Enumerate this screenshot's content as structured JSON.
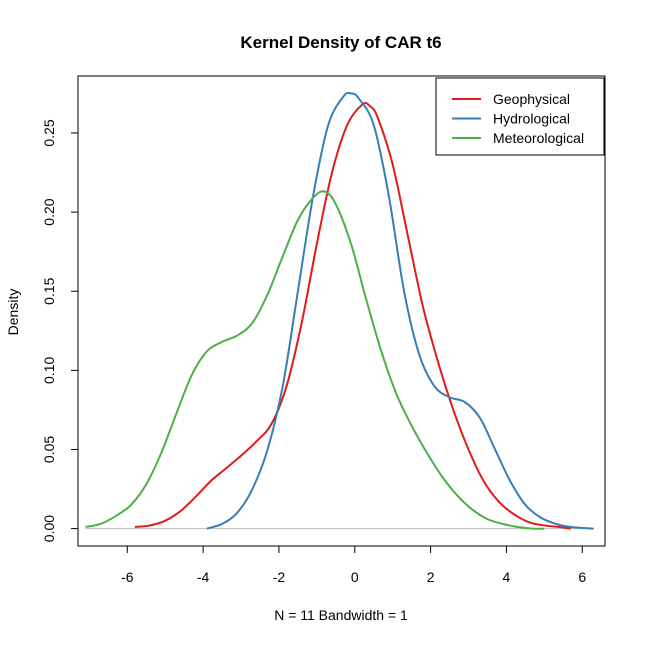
{
  "chart_data": {
    "type": "line",
    "title": "Kernel Density of CAR t6",
    "xlabel": "N = 11   Bandwidth = 1",
    "ylabel": "Density",
    "xlim": [
      -7.3,
      6.6
    ],
    "ylim": [
      -0.011,
      0.286
    ],
    "x_ticks": [
      -6,
      -4,
      -2,
      0,
      2,
      4,
      6
    ],
    "y_ticks": [
      0.0,
      0.05,
      0.1,
      0.15,
      0.2,
      0.25
    ],
    "x_tick_labels": [
      "-6",
      "-4",
      "-2",
      "0",
      "2",
      "4",
      "6"
    ],
    "y_tick_labels": [
      "0.00",
      "0.05",
      "0.10",
      "0.15",
      "0.20",
      "0.25"
    ],
    "baseline": 0,
    "legend_position": "top-right",
    "series": [
      {
        "name": "Geophysical",
        "color": "#e31a1c",
        "x": [
          -5.8,
          -5.4,
          -5.0,
          -4.6,
          -4.2,
          -3.8,
          -3.4,
          -3.0,
          -2.6,
          -2.2,
          -1.8,
          -1.4,
          -1.0,
          -0.6,
          -0.2,
          0.2,
          0.4,
          0.6,
          1.0,
          1.4,
          1.8,
          2.2,
          2.6,
          3.0,
          3.4,
          3.8,
          4.2,
          4.6,
          5.0,
          5.4,
          5.7
        ],
        "y": [
          0.001,
          0.002,
          0.005,
          0.011,
          0.02,
          0.03,
          0.038,
          0.046,
          0.055,
          0.066,
          0.09,
          0.13,
          0.18,
          0.225,
          0.255,
          0.268,
          0.267,
          0.26,
          0.23,
          0.185,
          0.14,
          0.105,
          0.075,
          0.05,
          0.03,
          0.017,
          0.009,
          0.004,
          0.002,
          0.001,
          0.0
        ]
      },
      {
        "name": "Hydrological",
        "color": "#377eb8",
        "x": [
          -3.9,
          -3.5,
          -3.1,
          -2.7,
          -2.3,
          -1.9,
          -1.5,
          -1.1,
          -0.7,
          -0.3,
          -0.1,
          0.1,
          0.5,
          0.9,
          1.3,
          1.7,
          2.1,
          2.5,
          2.9,
          3.3,
          3.7,
          4.1,
          4.5,
          4.9,
          5.3,
          5.7,
          6.3
        ],
        "y": [
          0.0,
          0.003,
          0.01,
          0.025,
          0.05,
          0.09,
          0.15,
          0.21,
          0.255,
          0.273,
          0.275,
          0.272,
          0.255,
          0.21,
          0.15,
          0.11,
          0.09,
          0.083,
          0.08,
          0.07,
          0.05,
          0.03,
          0.015,
          0.007,
          0.003,
          0.001,
          0.0
        ]
      },
      {
        "name": "Meteorological",
        "color": "#4daf4a",
        "x": [
          -7.1,
          -6.7,
          -6.3,
          -5.9,
          -5.5,
          -5.1,
          -4.7,
          -4.3,
          -3.9,
          -3.5,
          -3.1,
          -2.7,
          -2.3,
          -1.9,
          -1.5,
          -1.1,
          -0.8,
          -0.5,
          -0.1,
          0.3,
          0.7,
          1.1,
          1.5,
          1.9,
          2.3,
          2.7,
          3.1,
          3.5,
          3.9,
          4.3,
          4.7,
          5.0
        ],
        "y": [
          0.001,
          0.003,
          0.008,
          0.015,
          0.028,
          0.048,
          0.073,
          0.097,
          0.112,
          0.118,
          0.122,
          0.13,
          0.148,
          0.172,
          0.195,
          0.209,
          0.213,
          0.205,
          0.18,
          0.145,
          0.112,
          0.085,
          0.065,
          0.048,
          0.033,
          0.021,
          0.012,
          0.006,
          0.003,
          0.001,
          0.0,
          0.0
        ]
      }
    ]
  }
}
